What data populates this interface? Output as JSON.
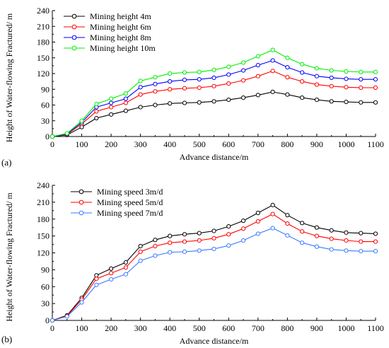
{
  "chart_data": [
    {
      "type": "line",
      "panel_label": "(a)",
      "xlabel": "Advance distance/m",
      "ylabel": "Height of Water-flowing Fractured/ m",
      "xlim": [
        0,
        1100
      ],
      "ylim": [
        0,
        240
      ],
      "xticks": [
        0,
        100,
        200,
        300,
        400,
        500,
        600,
        700,
        800,
        900,
        1000,
        1100
      ],
      "yticks": [
        0,
        30,
        60,
        90,
        120,
        150,
        180,
        210,
        240
      ],
      "legend_position": "top-left",
      "grid": false,
      "x": [
        0,
        50,
        100,
        150,
        200,
        250,
        300,
        350,
        400,
        450,
        500,
        550,
        600,
        650,
        700,
        750,
        800,
        850,
        900,
        950,
        1000,
        1050,
        1100
      ],
      "series": [
        {
          "name": "Mining height 4m",
          "color": "#000000",
          "values": [
            0,
            3,
            18,
            35,
            42,
            49,
            56,
            60,
            63,
            64,
            65,
            67,
            70,
            74,
            79,
            85,
            80,
            74,
            70,
            67,
            66,
            65,
            65
          ]
        },
        {
          "name": "Mining height 6m",
          "color": "#ff0000",
          "values": [
            0,
            4,
            24,
            48,
            56,
            64,
            80,
            86,
            90,
            92,
            93,
            96,
            101,
            107,
            115,
            125,
            113,
            105,
            99,
            96,
            94,
            93,
            93
          ]
        },
        {
          "name": "Mining height 8m",
          "color": "#0000ff",
          "values": [
            0,
            5,
            27,
            56,
            64,
            72,
            94,
            100,
            105,
            108,
            109,
            112,
            118,
            126,
            136,
            145,
            132,
            122,
            115,
            112,
            110,
            109,
            109
          ]
        },
        {
          "name": "Mining height 10m",
          "color": "#00ee00",
          "values": [
            0,
            6,
            30,
            62,
            72,
            82,
            106,
            113,
            120,
            122,
            123,
            127,
            133,
            141,
            153,
            165,
            150,
            138,
            130,
            126,
            124,
            123,
            123
          ]
        }
      ]
    },
    {
      "type": "line",
      "panel_label": "(b)",
      "xlabel": "Advance distance/m",
      "ylabel": "Height of Water-flowing Fractured/ m",
      "xlim": [
        0,
        1100
      ],
      "ylim": [
        0,
        240
      ],
      "xticks": [
        0,
        100,
        200,
        300,
        400,
        500,
        600,
        700,
        800,
        900,
        1000,
        1100
      ],
      "yticks": [
        0,
        30,
        60,
        90,
        120,
        150,
        180,
        210,
        240
      ],
      "legend_position": "top-left",
      "grid": false,
      "x": [
        0,
        50,
        100,
        150,
        200,
        250,
        300,
        350,
        400,
        450,
        500,
        550,
        600,
        650,
        700,
        750,
        800,
        850,
        900,
        950,
        1000,
        1050,
        1100
      ],
      "series": [
        {
          "name": "Mining speed 3m/d",
          "color": "#000000",
          "values": [
            0,
            9,
            40,
            80,
            92,
            103,
            132,
            143,
            150,
            153,
            155,
            159,
            167,
            177,
            191,
            205,
            187,
            173,
            165,
            160,
            156,
            155,
            154
          ]
        },
        {
          "name": "Mining speed 5m/d",
          "color": "#ff0000",
          "values": [
            0,
            8,
            37,
            74,
            84,
            94,
            122,
            132,
            138,
            140,
            142,
            146,
            153,
            163,
            176,
            189,
            172,
            158,
            150,
            145,
            142,
            140,
            140
          ]
        },
        {
          "name": "Mining speed 7m/d",
          "color": "#3a7bff",
          "values": [
            0,
            7,
            32,
            63,
            73,
            82,
            106,
            115,
            121,
            122,
            124,
            127,
            133,
            142,
            154,
            164,
            151,
            138,
            131,
            126,
            124,
            123,
            123
          ]
        }
      ]
    }
  ]
}
